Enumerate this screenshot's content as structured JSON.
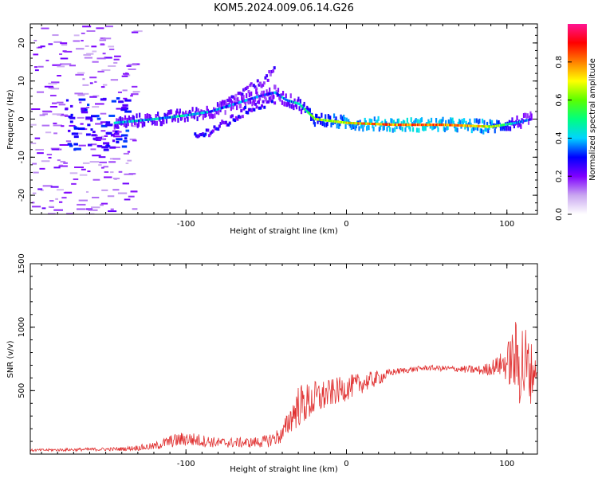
{
  "chart_data": [
    {
      "type": "heatmap",
      "title": "KOM5.2024.009.06.14.G26",
      "xlabel": "Height of straight line (km)",
      "ylabel": "Frequency (Hz)",
      "xlim": [
        -197,
        119
      ],
      "ylim": [
        -25,
        25
      ],
      "xticks": [
        -100,
        0,
        100
      ],
      "yticks": [
        20,
        10,
        0,
        -10,
        -20
      ],
      "colorbar": {
        "label": "Normalized spectral amplitude",
        "range": [
          0,
          1
        ],
        "ticks": [
          0.0,
          0.2,
          0.4,
          0.6,
          0.8
        ],
        "colors": [
          "#ffffff",
          "#c9a6f0",
          "#7f00ff",
          "#0000ff",
          "#00d4ff",
          "#00ff7f",
          "#5aff00",
          "#ffff00",
          "#ff8000",
          "#ff0000",
          "#ff1493"
        ]
      },
      "ridge": {
        "x": [
          -145,
          -120,
          -100,
          -85,
          -70,
          -55,
          -45,
          -38,
          -30,
          -20,
          0,
          30,
          60,
          90,
          105,
          115
        ],
        "y": [
          -1,
          0,
          1,
          2,
          4,
          6,
          7,
          5,
          4,
          0,
          -1,
          -1.5,
          -1.5,
          -2,
          -1,
          0
        ],
        "amplitude": [
          0.35,
          0.4,
          0.4,
          0.35,
          0.3,
          0.3,
          0.3,
          0.35,
          0.4,
          0.6,
          0.7,
          0.8,
          0.8,
          0.7,
          0.4,
          0.3
        ]
      },
      "branches": [
        {
          "x": [
            -80,
            -65,
            -52,
            -45
          ],
          "y": [
            3,
            7,
            10,
            13
          ],
          "amplitude": 0.2
        },
        {
          "x": [
            -95,
            -75,
            -60,
            -45
          ],
          "y": [
            -5,
            -1,
            3,
            5
          ],
          "amplitude": 0.25
        }
      ]
    },
    {
      "type": "line",
      "xlabel": "Height of straight line (km)",
      "ylabel": "SNR (v/v)",
      "xlim": [
        -197,
        119
      ],
      "ylim": [
        0,
        1500
      ],
      "xticks": [
        -100,
        0,
        100
      ],
      "yticks": [
        500,
        1000,
        1500
      ],
      "color": "#e03030",
      "series": [
        {
          "x": [
            -197,
            -170,
            -140,
            -120,
            -110,
            -100,
            -80,
            -60,
            -50,
            -40,
            -35,
            -30,
            -25,
            -20,
            -10,
            0,
            10,
            20,
            30,
            50,
            70,
            85,
            95,
            100,
            105,
            110,
            115,
            119
          ],
          "y": [
            30,
            35,
            40,
            60,
            100,
            120,
            90,
            90,
            100,
            150,
            280,
            380,
            400,
            430,
            480,
            520,
            560,
            600,
            650,
            680,
            670,
            660,
            700,
            720,
            750,
            700,
            650,
            660
          ],
          "noise": [
            10,
            12,
            15,
            30,
            50,
            60,
            40,
            40,
            50,
            70,
            120,
            170,
            160,
            150,
            110,
            100,
            80,
            60,
            25,
            20,
            25,
            40,
            80,
            150,
            300,
            400,
            250,
            30
          ]
        }
      ]
    }
  ]
}
